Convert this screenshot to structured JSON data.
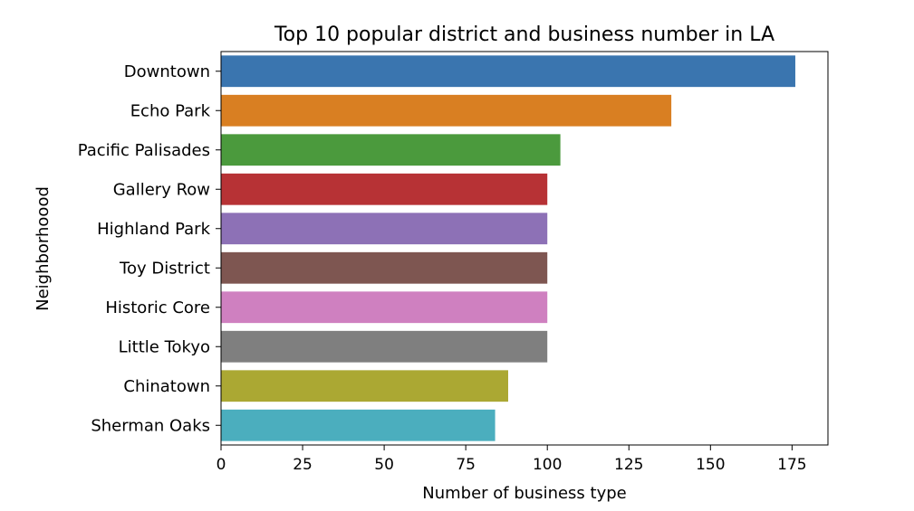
{
  "chart_data": {
    "type": "bar",
    "orientation": "horizontal",
    "title": "Top 10 popular district and business number in LA",
    "xlabel": "Number of business type",
    "ylabel": "Neighborhoood",
    "categories": [
      "Downtown",
      "Echo Park",
      "Pacific Palisades",
      "Gallery Row",
      "Highland Park",
      "Toy District",
      "Historic Core",
      "Little Tokyo",
      "Chinatown",
      "Sherman Oaks"
    ],
    "values": [
      176,
      138,
      104,
      100,
      100,
      100,
      100,
      100,
      88,
      84
    ],
    "colors": [
      "#3a75af",
      "#d97f22",
      "#4b9a3d",
      "#b73235",
      "#8d71b6",
      "#7e5651",
      "#cf80c0",
      "#7f7f7f",
      "#aba833",
      "#4baebe"
    ],
    "xlim": [
      0,
      186
    ],
    "xticks": [
      0,
      25,
      50,
      75,
      100,
      125,
      150,
      175
    ],
    "grid": false,
    "legend": "none"
  }
}
